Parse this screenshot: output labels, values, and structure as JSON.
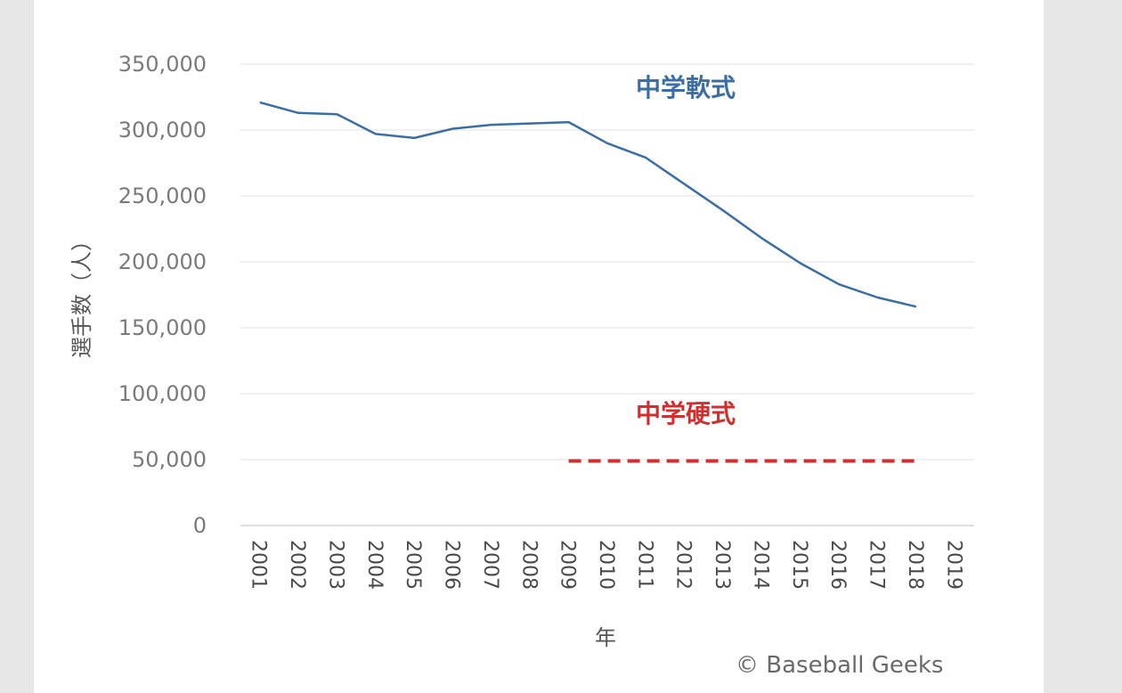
{
  "chart_data": {
    "type": "line",
    "x": [
      "2001",
      "2002",
      "2003",
      "2004",
      "2005",
      "2006",
      "2007",
      "2008",
      "2009",
      "2010",
      "2011",
      "2012",
      "2013",
      "2014",
      "2015",
      "2016",
      "2017",
      "2018",
      "2019"
    ],
    "series": [
      {
        "name": "中学軟式",
        "color": "#3a6ea5",
        "style": "solid",
        "values": [
          321000,
          313000,
          312000,
          297000,
          294000,
          301000,
          304000,
          305000,
          306000,
          290000,
          279000,
          259000,
          239000,
          218000,
          199000,
          183000,
          173000,
          166000,
          null
        ]
      },
      {
        "name": "中学硬式",
        "color": "#d02f2f",
        "style": "dashed",
        "values": [
          null,
          null,
          null,
          null,
          null,
          null,
          null,
          null,
          49000,
          49000,
          49000,
          49000,
          49000,
          49000,
          49000,
          49000,
          49000,
          49000,
          null
        ]
      }
    ],
    "ylabel": "選手数（人）",
    "xlabel": "年",
    "ylim": [
      0,
      350000
    ],
    "yticks": [
      "0",
      "50,000",
      "100,000",
      "150,000",
      "200,000",
      "250,000",
      "300,000",
      "350,000"
    ],
    "grid": true,
    "legend": "none"
  },
  "credit": "© Baseball Geeks"
}
